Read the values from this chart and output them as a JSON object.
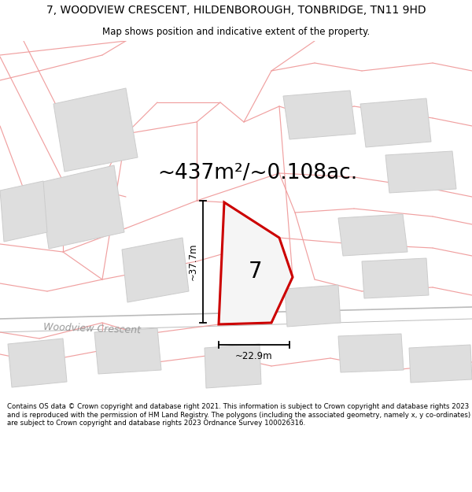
{
  "title": "7, WOODVIEW CRESCENT, HILDENBOROUGH, TONBRIDGE, TN11 9HD",
  "subtitle": "Map shows position and indicative extent of the property.",
  "area_text": "~437m²/~0.108ac.",
  "label_7": "7",
  "dim_height": "~37.7m",
  "dim_width": "~22.9m",
  "road_label": "Woodview Crescent",
  "footer": "Contains OS data © Crown copyright and database right 2021. This information is subject to Crown copyright and database rights 2023 and is reproduced with the permission of HM Land Registry. The polygons (including the associated geometry, namely x, y co-ordinates) are subject to Crown copyright and database rights 2023 Ordnance Survey 100026316.",
  "bg_color": "#ffffff",
  "map_bg": "#ffffff",
  "plot_fill": "#f5f5f5",
  "plot_edge": "#cc0000",
  "building_fill": "#dedede",
  "building_edge": "#cccccc",
  "pink_line_color": "#f0a0a0",
  "road_color": "#cccccc",
  "title_fontsize": 10,
  "subtitle_fontsize": 8.5,
  "area_fontsize": 19,
  "label7_fontsize": 20,
  "footer_fontsize": 6.2,
  "dim_fontsize": 8.5,
  "road_label_fontsize": 9
}
